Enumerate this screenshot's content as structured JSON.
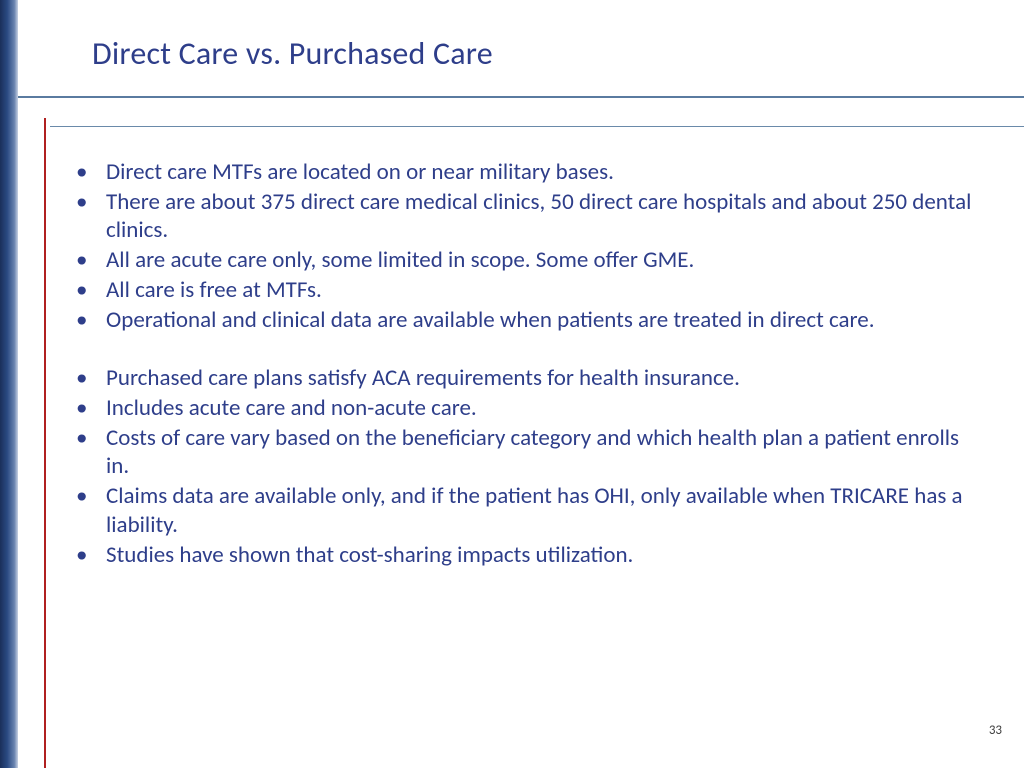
{
  "title": "Direct Care vs. Purchased Care",
  "bullets_group1": [
    "Direct care MTFs are located on or near military bases.",
    "There are about 375 direct care medical clinics, 50 direct care hospitals and about 250 dental clinics.",
    "All are acute care only, some limited in scope.  Some offer GME.",
    "All care is free at MTFs.",
    "Operational and clinical data are available when patients are treated in direct care."
  ],
  "bullets_group2": [
    "Purchased care plans satisfy ACA requirements for health insurance.",
    "Includes acute care and non-acute care.",
    "Costs of care vary based on the beneficiary category and which health plan a patient enrolls in.",
    "Claims data are available only, and if the patient has OHI, only available when TRICARE has a liability.",
    "Studies have shown that cost-sharing impacts utilization."
  ],
  "page_number": "33",
  "colors": {
    "title_text": "#2e3e8a",
    "body_text": "#2e3e8a",
    "rule": "#5a7ba0",
    "red_line": "#b02020",
    "left_bar_dark": "#1a2f5a",
    "left_bar_light": "#c8d2e4",
    "background": "#ffffff"
  }
}
